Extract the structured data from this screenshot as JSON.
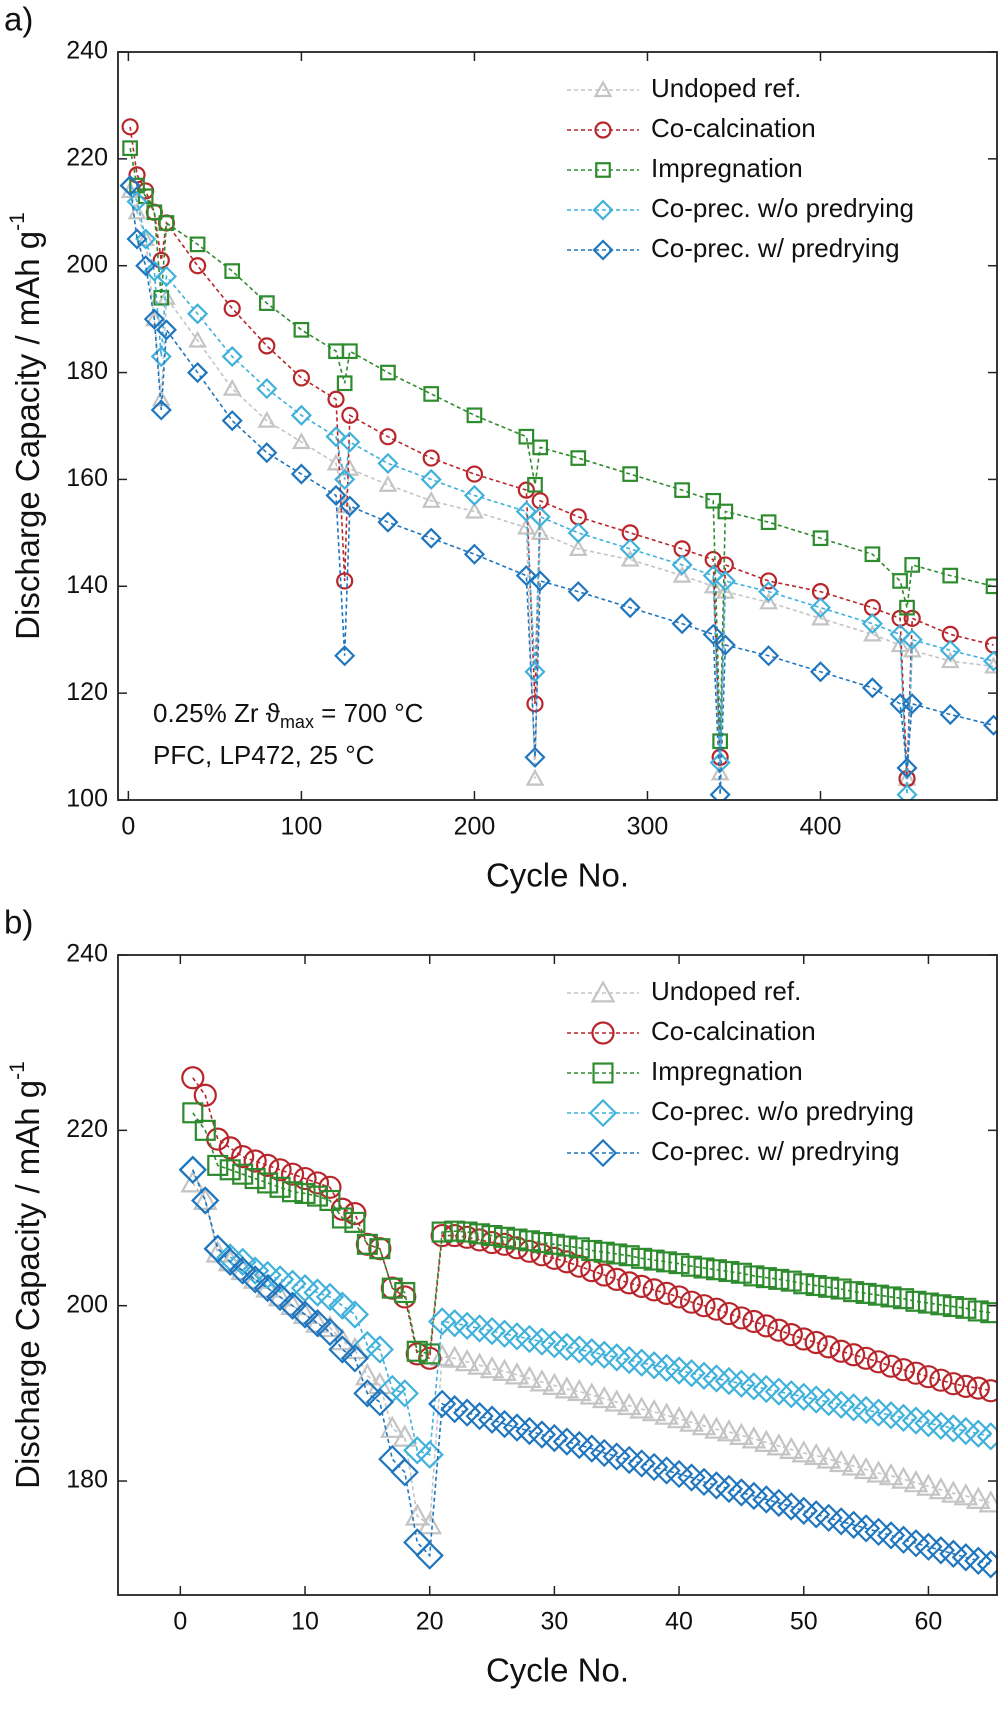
{
  "chart_data": [
    {
      "type": "line",
      "panel_label": "a)",
      "x_label": "Cycle No.",
      "y_label": "Discharge Capacity / mAh g",
      "y_label_sup": "-1",
      "xlim": [
        -6,
        502
      ],
      "ylim": [
        100,
        240
      ],
      "xticks": [
        0,
        100,
        200,
        300,
        400
      ],
      "yticks": [
        100,
        120,
        140,
        160,
        180,
        200,
        220,
        240
      ],
      "legend": "upper right",
      "annotation": [
        {
          "text": "0.25% Zr ϑ",
          "sub": "max",
          "tail": " = 700 °C"
        },
        {
          "text": "PFC, LP472, 25 °C"
        }
      ],
      "x": [
        1,
        5,
        10,
        15,
        19,
        22,
        40,
        60,
        80,
        100,
        120,
        125,
        128,
        150,
        175,
        200,
        230,
        235,
        238,
        260,
        290,
        320,
        338,
        342,
        345,
        370,
        400,
        430,
        446,
        450,
        453,
        475,
        500
      ],
      "series": [
        {
          "name": "Undoped ref.",
          "color": "#c4c4c4",
          "marker": "triangle",
          "values": [
            214,
            210,
            205,
            190,
            175,
            194,
            186,
            177,
            171,
            167,
            163,
            155,
            162,
            159,
            156,
            154,
            151,
            104,
            150,
            147,
            145,
            142,
            140,
            105,
            139,
            137,
            134,
            131,
            129,
            104,
            128,
            126,
            125
          ]
        },
        {
          "name": "Co-calcination",
          "color": "#b8262b",
          "marker": "circle",
          "values": [
            226,
            217,
            214,
            210,
            201,
            208,
            200,
            192,
            185,
            179,
            175,
            141,
            172,
            168,
            164,
            161,
            158,
            118,
            156,
            153,
            150,
            147,
            145,
            108,
            144,
            141,
            139,
            136,
            134,
            104,
            134,
            131,
            129
          ]
        },
        {
          "name": "Impregnation",
          "color": "#2e8b2e",
          "marker": "square",
          "values": [
            222,
            215,
            213,
            210,
            194,
            208,
            204,
            199,
            193,
            188,
            184,
            178,
            184,
            180,
            176,
            172,
            168,
            159,
            166,
            164,
            161,
            158,
            156,
            111,
            154,
            152,
            149,
            146,
            141,
            136,
            144,
            142,
            140
          ]
        },
        {
          "name": "Co-prec. w/o predrying",
          "color": "#3fb1da",
          "marker": "diamond",
          "values": [
            215,
            212,
            205,
            199,
            183,
            198,
            191,
            183,
            177,
            172,
            168,
            160,
            167,
            163,
            160,
            157,
            154,
            124,
            153,
            150,
            147,
            144,
            142,
            107,
            141,
            139,
            136,
            133,
            131,
            101,
            130,
            128,
            126
          ]
        },
        {
          "name": "Co-prec. w/ predrying",
          "color": "#1f76be",
          "marker": "diamond",
          "values": [
            215,
            205,
            200,
            190,
            173,
            188,
            180,
            171,
            165,
            161,
            157,
            127,
            155,
            152,
            149,
            146,
            142,
            108,
            141,
            139,
            136,
            133,
            131,
            101,
            129,
            127,
            124,
            121,
            118,
            106,
            118,
            116,
            114
          ]
        }
      ]
    },
    {
      "type": "line",
      "panel_label": "b)",
      "x_label": "Cycle No.",
      "y_label": "Discharge Capacity / mAh g",
      "y_label_sup": "-1",
      "xlim": [
        -5,
        65.5
      ],
      "ylim": [
        167,
        240
      ],
      "xticks": [
        0,
        10,
        20,
        30,
        40,
        50,
        60
      ],
      "yticks": [
        180,
        200,
        220,
        240
      ],
      "legend": "upper right",
      "x": [
        1,
        2,
        3,
        4,
        5,
        6,
        7,
        8,
        9,
        10,
        11,
        12,
        13,
        14,
        15,
        16,
        17,
        18,
        19,
        20,
        21,
        22,
        23,
        24,
        25,
        26,
        27,
        28,
        29,
        30,
        31,
        32,
        33,
        34,
        35,
        36,
        37,
        38,
        39,
        40,
        41,
        42,
        43,
        44,
        45,
        46,
        47,
        48,
        49,
        50,
        51,
        52,
        53,
        54,
        55,
        56,
        57,
        58,
        59,
        60,
        61,
        62,
        63,
        64,
        65
      ],
      "series": [
        {
          "name": "Undoped ref.",
          "color": "#c4c4c4",
          "marker": "triangle",
          "values": [
            214,
            212,
            206,
            205,
            204,
            203,
            202,
            201,
            200,
            199,
            198,
            197.5,
            196,
            195,
            192,
            191,
            186,
            185,
            176,
            175,
            194.2,
            194.0,
            193.6,
            193.2,
            192.8,
            192.5,
            192.1,
            191.7,
            191.3,
            190.9,
            190.5,
            190.2,
            189.8,
            189.4,
            189.0,
            188.6,
            188.2,
            187.9,
            187.5,
            187.1,
            186.7,
            186.3,
            185.9,
            185.6,
            185.2,
            184.8,
            184.4,
            184.0,
            183.6,
            183.2,
            182.9,
            182.5,
            182.1,
            181.7,
            181.3,
            180.9,
            180.6,
            180.2,
            179.8,
            179.4,
            179.0,
            178.6,
            178.3,
            177.9,
            177.5
          ]
        },
        {
          "name": "Co-calcination",
          "color": "#b8262b",
          "marker": "circle",
          "values": [
            226,
            224,
            219,
            218,
            217,
            216.5,
            216,
            215.5,
            215,
            214.5,
            214,
            213.5,
            211,
            210.5,
            207,
            206.5,
            202,
            201,
            194.5,
            194,
            208,
            208,
            207.8,
            207.5,
            207.2,
            207,
            206.6,
            206.2,
            205.8,
            205.4,
            205,
            204.5,
            204,
            203.5,
            203,
            202.6,
            202.2,
            201.8,
            201.4,
            201,
            200.4,
            200,
            199.6,
            199.1,
            198.6,
            198.2,
            197.7,
            197.2,
            196.7,
            196.2,
            195.8,
            195.3,
            194.8,
            194.4,
            194,
            193.6,
            193.1,
            192.7,
            192.3,
            191.9,
            191.5,
            191.1,
            190.8,
            190.6,
            190.3
          ]
        },
        {
          "name": "Impregnation",
          "color": "#2e8b2e",
          "marker": "square",
          "values": [
            222,
            220,
            216,
            215.5,
            215,
            214.5,
            214,
            213.5,
            213,
            212.8,
            212.5,
            212,
            210,
            209.5,
            207,
            206.5,
            202,
            201.5,
            194.8,
            194.5,
            208.4,
            208.5,
            208.4,
            208.2,
            208,
            207.8,
            207.6,
            207.4,
            207.2,
            207.0,
            206.8,
            206.6,
            206.3,
            206.1,
            205.9,
            205.7,
            205.4,
            205.2,
            205.0,
            204.8,
            204.5,
            204.3,
            204.1,
            203.9,
            203.7,
            203.4,
            203.2,
            203.0,
            202.8,
            202.5,
            202.3,
            202.1,
            201.9,
            201.6,
            201.4,
            201.2,
            201.0,
            200.8,
            200.5,
            200.3,
            200.1,
            199.9,
            199.7,
            199.4,
            199.2
          ]
        },
        {
          "name": "Co-prec. w/o predrying",
          "color": "#3fb1da",
          "marker": "diamond",
          "values": [
            215.5,
            212,
            206.5,
            205.5,
            205,
            204,
            203.5,
            203,
            202.5,
            202,
            201.5,
            201,
            200,
            199,
            195.5,
            195,
            190.5,
            190,
            183.5,
            183,
            198.2,
            198.0,
            197.7,
            197.4,
            197.1,
            196.8,
            196.5,
            196.2,
            195.9,
            195.6,
            195.3,
            195.0,
            194.7,
            194.4,
            194.1,
            193.8,
            193.5,
            193.2,
            192.9,
            192.6,
            192.3,
            192.0,
            191.7,
            191.4,
            191.1,
            190.8,
            190.5,
            190.2,
            189.9,
            189.6,
            189.3,
            189.0,
            188.7,
            188.4,
            188.1,
            187.8,
            187.5,
            187.2,
            186.9,
            186.6,
            186.3,
            186.0,
            185.7,
            185.4,
            185.1
          ]
        },
        {
          "name": "Co-prec. w/ predrying",
          "color": "#1f76be",
          "marker": "diamond",
          "values": [
            215.5,
            212,
            206.5,
            205,
            204,
            203,
            202,
            201,
            200,
            199,
            198,
            197,
            195,
            194,
            190,
            189,
            182.5,
            181,
            173,
            171.5,
            188.8,
            188.2,
            187.8,
            187.4,
            187.0,
            186.5,
            186.1,
            185.7,
            185.3,
            184.9,
            184.5,
            184.1,
            183.7,
            183.2,
            182.8,
            182.4,
            182.0,
            181.6,
            181.2,
            180.8,
            180.4,
            179.9,
            179.5,
            179.1,
            178.7,
            178.3,
            177.9,
            177.5,
            177.1,
            176.6,
            176.2,
            175.8,
            175.4,
            175.0,
            174.6,
            174.2,
            173.8,
            173.3,
            172.9,
            172.5,
            172.1,
            171.7,
            171.3,
            170.9,
            170.5
          ]
        }
      ]
    }
  ]
}
